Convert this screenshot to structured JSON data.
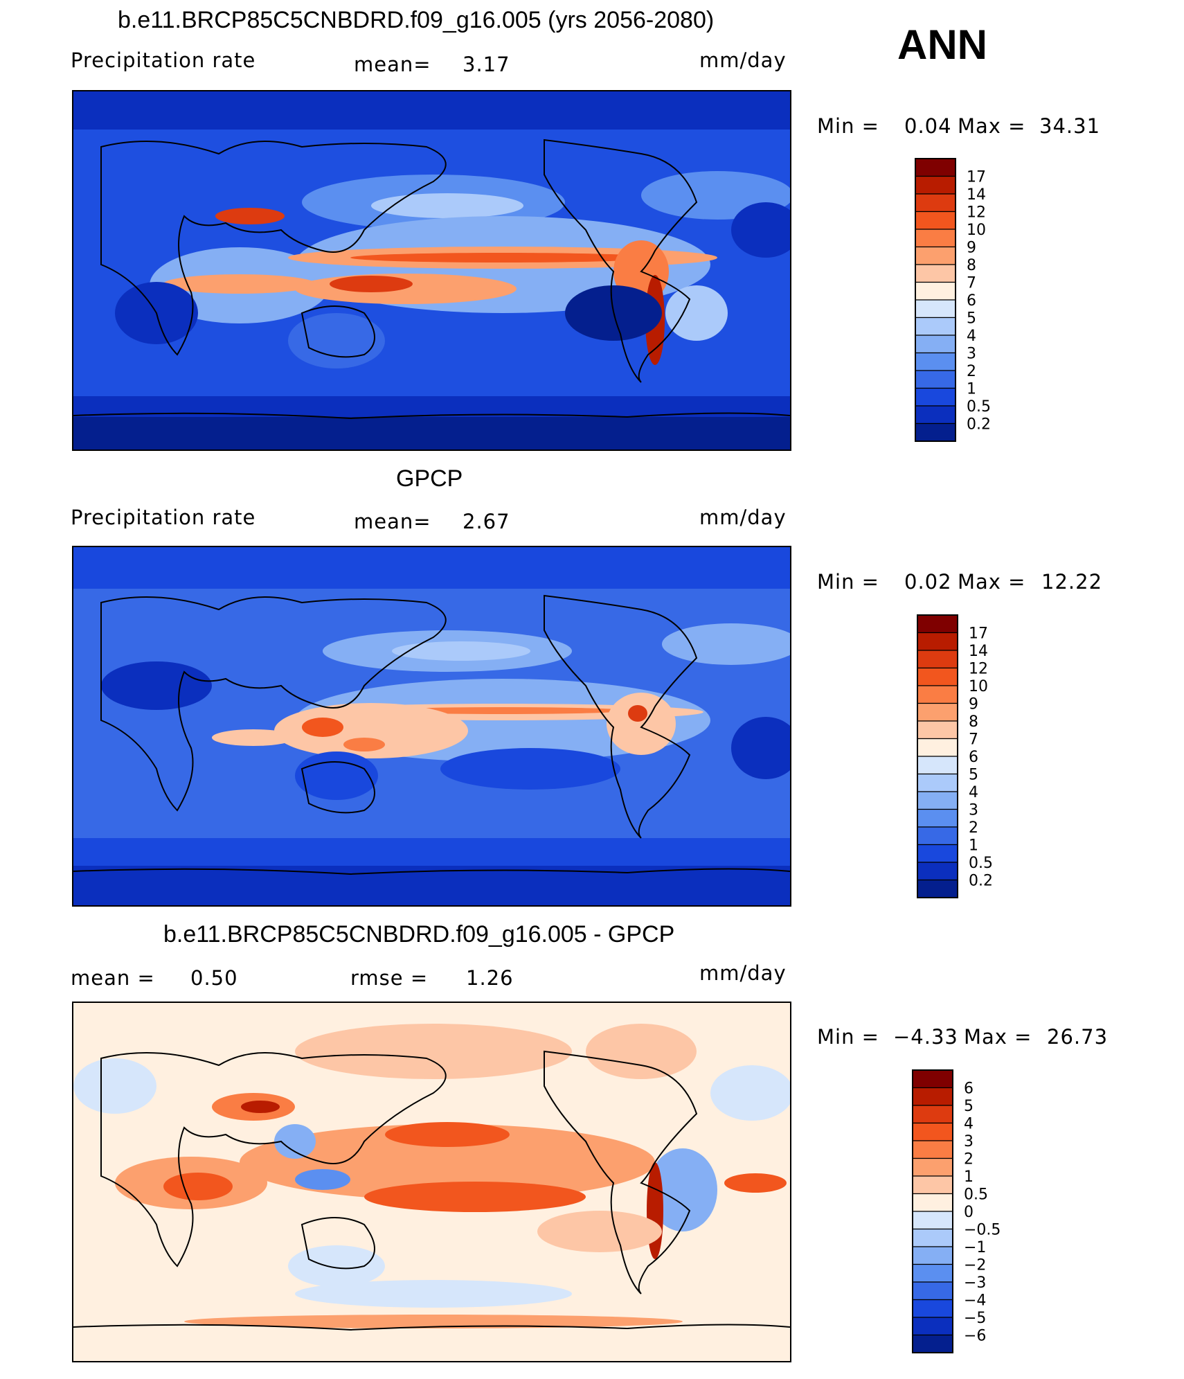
{
  "season_label": "ANN",
  "panels": [
    {
      "id": "model",
      "title": "b.e11.BRCP85C5CNBDRD.f09_g16.005 (yrs 2056-2080)",
      "left_label": "Precipitation  rate",
      "stat1_label": "mean=",
      "stat1_value": "3.17",
      "stat2_label": "",
      "stat2_value": "",
      "units": "mm/day",
      "min_label": "Min  =",
      "min_value": "0.04",
      "max_label": "Max  =",
      "max_value": "34.31",
      "colorbar_labels": [
        "17",
        "14",
        "12",
        "10",
        "9",
        "8",
        "7",
        "6",
        "5",
        "4",
        "3",
        "2",
        "1",
        "0.5",
        "0.2"
      ],
      "colorbar_colors": [
        "#7f0000",
        "#b81c00",
        "#dd3b10",
        "#f2561e",
        "#fa7d44",
        "#fca06e",
        "#fdc6a6",
        "#fff0e0",
        "#d6e6fb",
        "#abcafa",
        "#85aff4",
        "#5b8ff0",
        "#3769e6",
        "#1948dd",
        "#0b2fbe",
        "#041f8e"
      ]
    },
    {
      "id": "obs",
      "title": "GPCP",
      "left_label": "Precipitation  rate",
      "stat1_label": "mean=",
      "stat1_value": "2.67",
      "stat2_label": "",
      "stat2_value": "",
      "units": "mm/day",
      "min_label": "Min  =",
      "min_value": "0.02",
      "max_label": "Max  =",
      "max_value": "12.22",
      "colorbar_labels": [
        "17",
        "14",
        "12",
        "10",
        "9",
        "8",
        "7",
        "6",
        "5",
        "4",
        "3",
        "2",
        "1",
        "0.5",
        "0.2"
      ],
      "colorbar_colors": [
        "#7f0000",
        "#b81c00",
        "#dd3b10",
        "#f2561e",
        "#fa7d44",
        "#fca06e",
        "#fdc6a6",
        "#fff0e0",
        "#d6e6fb",
        "#abcafa",
        "#85aff4",
        "#5b8ff0",
        "#3769e6",
        "#1948dd",
        "#0b2fbe",
        "#041f8e"
      ]
    },
    {
      "id": "diff",
      "title": "b.e11.BRCP85C5CNBDRD.f09_g16.005 - GPCP",
      "left_label": "mean  =",
      "left_value": "0.50",
      "stat1_label": "rmse  =",
      "stat1_value": "1.26",
      "stat2_label": "",
      "stat2_value": "",
      "units": "mm/day",
      "min_label": "Min  =",
      "min_value": "−4.33",
      "max_label": "Max  =",
      "max_value": "26.73",
      "colorbar_labels": [
        "6",
        "5",
        "4",
        "3",
        "2",
        "1",
        "0.5",
        "0",
        "−0.5",
        "−1",
        "−2",
        "−3",
        "−4",
        "−5",
        "−6"
      ],
      "colorbar_colors": [
        "#7f0000",
        "#b81c00",
        "#dd3b10",
        "#f2561e",
        "#fa7d44",
        "#fca06e",
        "#fdc6a6",
        "#fff0e0",
        "#d6e6fb",
        "#abcafa",
        "#85aff4",
        "#5b8ff0",
        "#3769e6",
        "#1948dd",
        "#0b2fbe",
        "#041f8e"
      ]
    }
  ],
  "chart_data": [
    {
      "type": "heatmap",
      "title": "b.e11.BRCP85C5CNBDRD.f09_g16.005 (yrs 2056-2080)",
      "variable": "Precipitation  rate",
      "units": "mm/day",
      "mean": 3.17,
      "min": 0.04,
      "max": 34.31,
      "contour_levels": [
        0.2,
        0.5,
        1,
        2,
        3,
        4,
        5,
        6,
        7,
        8,
        9,
        10,
        12,
        14,
        17
      ]
    },
    {
      "type": "heatmap",
      "title": "GPCP",
      "variable": "Precipitation  rate",
      "units": "mm/day",
      "mean": 2.67,
      "min": 0.02,
      "max": 12.22,
      "contour_levels": [
        0.2,
        0.5,
        1,
        2,
        3,
        4,
        5,
        6,
        7,
        8,
        9,
        10,
        12,
        14,
        17
      ]
    },
    {
      "type": "heatmap",
      "title": "b.e11.BRCP85C5CNBDRD.f09_g16.005 - GPCP",
      "units": "mm/day",
      "mean": 0.5,
      "rmse": 1.26,
      "min": -4.33,
      "max": 26.73,
      "contour_levels": [
        -6,
        -5,
        -4,
        -3,
        -2,
        -1,
        -0.5,
        0,
        0.5,
        1,
        2,
        3,
        4,
        5,
        6
      ]
    }
  ]
}
